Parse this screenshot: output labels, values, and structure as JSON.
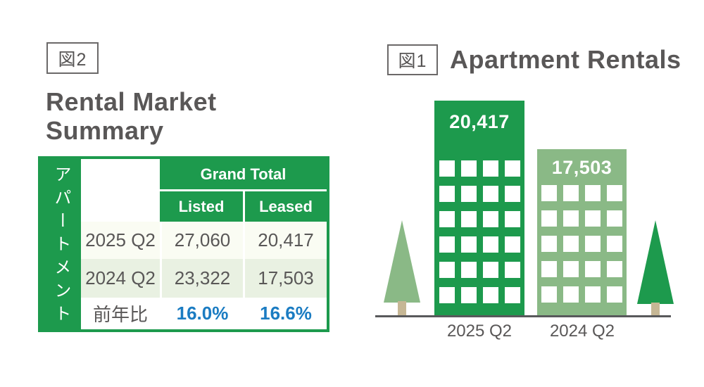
{
  "colors": {
    "brand_green": "#1d9a4d",
    "light_green": "#8ab986",
    "row_highlight_green": "#e9f1e2",
    "row_tint": "#fafcf3",
    "text_gray": "#595757",
    "percent_blue": "#1b7cc2",
    "tree_trunk_tan": "#c6b795",
    "ground_line_gray": "#58595b"
  },
  "figure2": {
    "tag": "図2",
    "title_line1": "Rental Market",
    "title_line2": "Summary",
    "table": {
      "side_label": "アパートメント",
      "group_header": "Grand Total",
      "col_listed": "Listed",
      "col_leased": "Leased",
      "rows": [
        {
          "label": "2025 Q2",
          "listed": "27,060",
          "leased": "20,417"
        },
        {
          "label": "2024 Q2",
          "listed": "23,322",
          "leased": "17,503"
        },
        {
          "label": "前年比",
          "listed": "16.0%",
          "leased": "16.6%"
        }
      ]
    }
  },
  "figure1": {
    "tag": "図1",
    "title": "Apartment Rentals",
    "bars": [
      {
        "label": "2025 Q2",
        "value": "20,417"
      },
      {
        "label": "2024 Q2",
        "value": "17,503"
      }
    ]
  },
  "chart_data": [
    {
      "type": "bar",
      "figure_tag": "図1",
      "title": "Apartment Rentals",
      "categories": [
        "2025 Q2",
        "2024 Q2"
      ],
      "values": [
        20417,
        17503
      ],
      "data_labels": [
        "20,417",
        "17,503"
      ],
      "bar_colors": [
        "#1d9a4d",
        "#8ab986"
      ],
      "style": "pictorial bars drawn as buildings with white windows, trees on both sides, baseline ground rule",
      "legend": "none",
      "grid": false
    },
    {
      "type": "table",
      "figure_tag": "図2",
      "title": "Rental Market Summary",
      "row_group_label": "アパートメント",
      "column_group_label": "Grand Total",
      "columns": [
        "Listed",
        "Leased"
      ],
      "rows": [
        {
          "label": "2025 Q2",
          "Listed": 27060,
          "Leased": 20417
        },
        {
          "label": "2024 Q2",
          "Listed": 23322,
          "Leased": 17503
        },
        {
          "label": "前年比",
          "Listed": "16.0%",
          "Leased": "16.6%"
        }
      ]
    }
  ]
}
